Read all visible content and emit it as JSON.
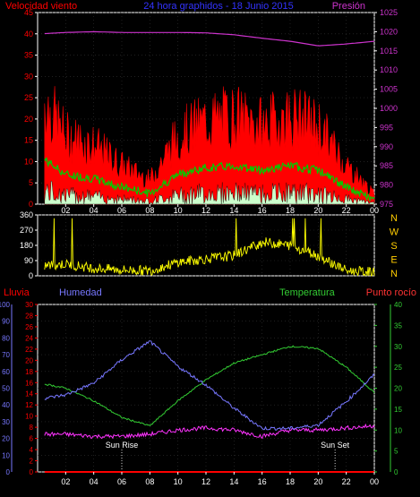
{
  "top_panel": {
    "title_left": "Velocidad viento",
    "title_center": "24 hora graphidos - 18 Junio 2015",
    "title_right": "Presión",
    "left_ticks": [
      "0",
      "5",
      "10",
      "15",
      "20",
      "25",
      "30",
      "35",
      "40",
      "45"
    ],
    "right_ticks": [
      "975",
      "980",
      "985",
      "990",
      "995",
      "1000",
      "1005",
      "1010",
      "1015",
      "1020",
      "1025"
    ]
  },
  "middle_panel": {
    "left_ticks": [
      "0",
      "90",
      "180",
      "270",
      "360"
    ],
    "compass_letters": [
      "N",
      "W",
      "S",
      "E",
      "N"
    ]
  },
  "bottom_panel": {
    "label_lluvia": "Lluvia",
    "label_humedad": "Humedad",
    "label_temperatura": "Temperatura",
    "label_punto_rocio": "Punto rocío",
    "humidity_ticks": [
      "0",
      "10",
      "20",
      "30",
      "40",
      "50",
      "60",
      "70",
      "80",
      "90",
      "100"
    ],
    "rain_ticks": [
      "0",
      "2",
      "4",
      "6",
      "8",
      "10",
      "12",
      "14",
      "16",
      "18",
      "20",
      "22",
      "24",
      "26",
      "28",
      "30"
    ],
    "temp_ticks": [
      "0",
      "5",
      "10",
      "15",
      "20",
      "25",
      "30",
      "35",
      "40"
    ],
    "sun_rise": "Sun Rise",
    "sun_set": "Sun Set"
  },
  "x_ticks": [
    "02",
    "04",
    "06",
    "08",
    "10",
    "12",
    "14",
    "16",
    "18",
    "20",
    "22",
    "00"
  ],
  "colors": {
    "wind_gust": "#ff0000",
    "wind_avg": "#00cc00",
    "wind_speed": "#ccffcc",
    "pressure": "#cc33cc",
    "direction": "#ffff00",
    "humidity": "#7777ff",
    "rain": "#ff0000",
    "temperature": "#33cc33",
    "dew_point": "#ff33ff",
    "axis": "#ffffff"
  },
  "chart_data": [
    {
      "type": "line",
      "panel": "wind_pressure",
      "title": "24 hora graphidos - 18 Junio 2015",
      "x_hours": [
        0.5,
        2,
        4,
        6,
        8,
        10,
        12,
        14,
        16,
        18,
        20,
        22,
        24
      ],
      "series": [
        {
          "name": "Velocidad viento",
          "axis": "left",
          "values": [
            21,
            14,
            12,
            8,
            5,
            14,
            17,
            18,
            16,
            18,
            16,
            8,
            2
          ]
        },
        {
          "name": "Presión",
          "axis": "right",
          "values": [
            1019.5,
            1019.8,
            1020,
            1019.8,
            1019.8,
            1019.8,
            1019.7,
            1019.2,
            1018.3,
            1017.5,
            1016.3,
            1016.8,
            1017.5
          ]
        }
      ],
      "ylim_left": [
        0,
        45
      ],
      "ylim_right": [
        975,
        1025
      ]
    },
    {
      "type": "line",
      "panel": "wind_direction",
      "x_hours": [
        0.5,
        2,
        4,
        6,
        8,
        10,
        12,
        14,
        16,
        18,
        20,
        22,
        24
      ],
      "series": [
        {
          "name": "direction",
          "values": [
            60,
            70,
            45,
            35,
            30,
            80,
            100,
            120,
            200,
            180,
            120,
            30,
            20
          ]
        }
      ],
      "ylim": [
        0,
        360
      ]
    },
    {
      "type": "line",
      "panel": "humidity_temp",
      "x_hours": [
        0.5,
        2,
        4,
        6,
        8,
        10,
        12,
        14,
        16,
        18,
        20,
        22,
        24
      ],
      "series": [
        {
          "name": "Humedad",
          "axis": "humidity",
          "values": [
            44,
            46,
            53,
            67,
            78,
            63,
            52,
            38,
            26,
            26,
            28,
            42,
            58
          ]
        },
        {
          "name": "Temperatura",
          "axis": "temp",
          "values": [
            21,
            20,
            17,
            13,
            11,
            17,
            22,
            26,
            28,
            30,
            29.5,
            25,
            19
          ]
        },
        {
          "name": "Punto rocío",
          "axis": "temp",
          "values": [
            9,
            9,
            8.5,
            8.5,
            9,
            10,
            10.5,
            10,
            8.5,
            10,
            10,
            10.5,
            11
          ]
        },
        {
          "name": "Lluvia",
          "axis": "rain",
          "values": [
            0,
            0,
            0,
            0,
            0,
            0,
            0,
            0,
            0,
            0,
            0,
            0,
            0
          ]
        }
      ],
      "ylim_humidity": [
        0,
        100
      ],
      "ylim_rain": [
        0,
        30
      ],
      "ylim_temp": [
        0,
        40
      ]
    }
  ]
}
